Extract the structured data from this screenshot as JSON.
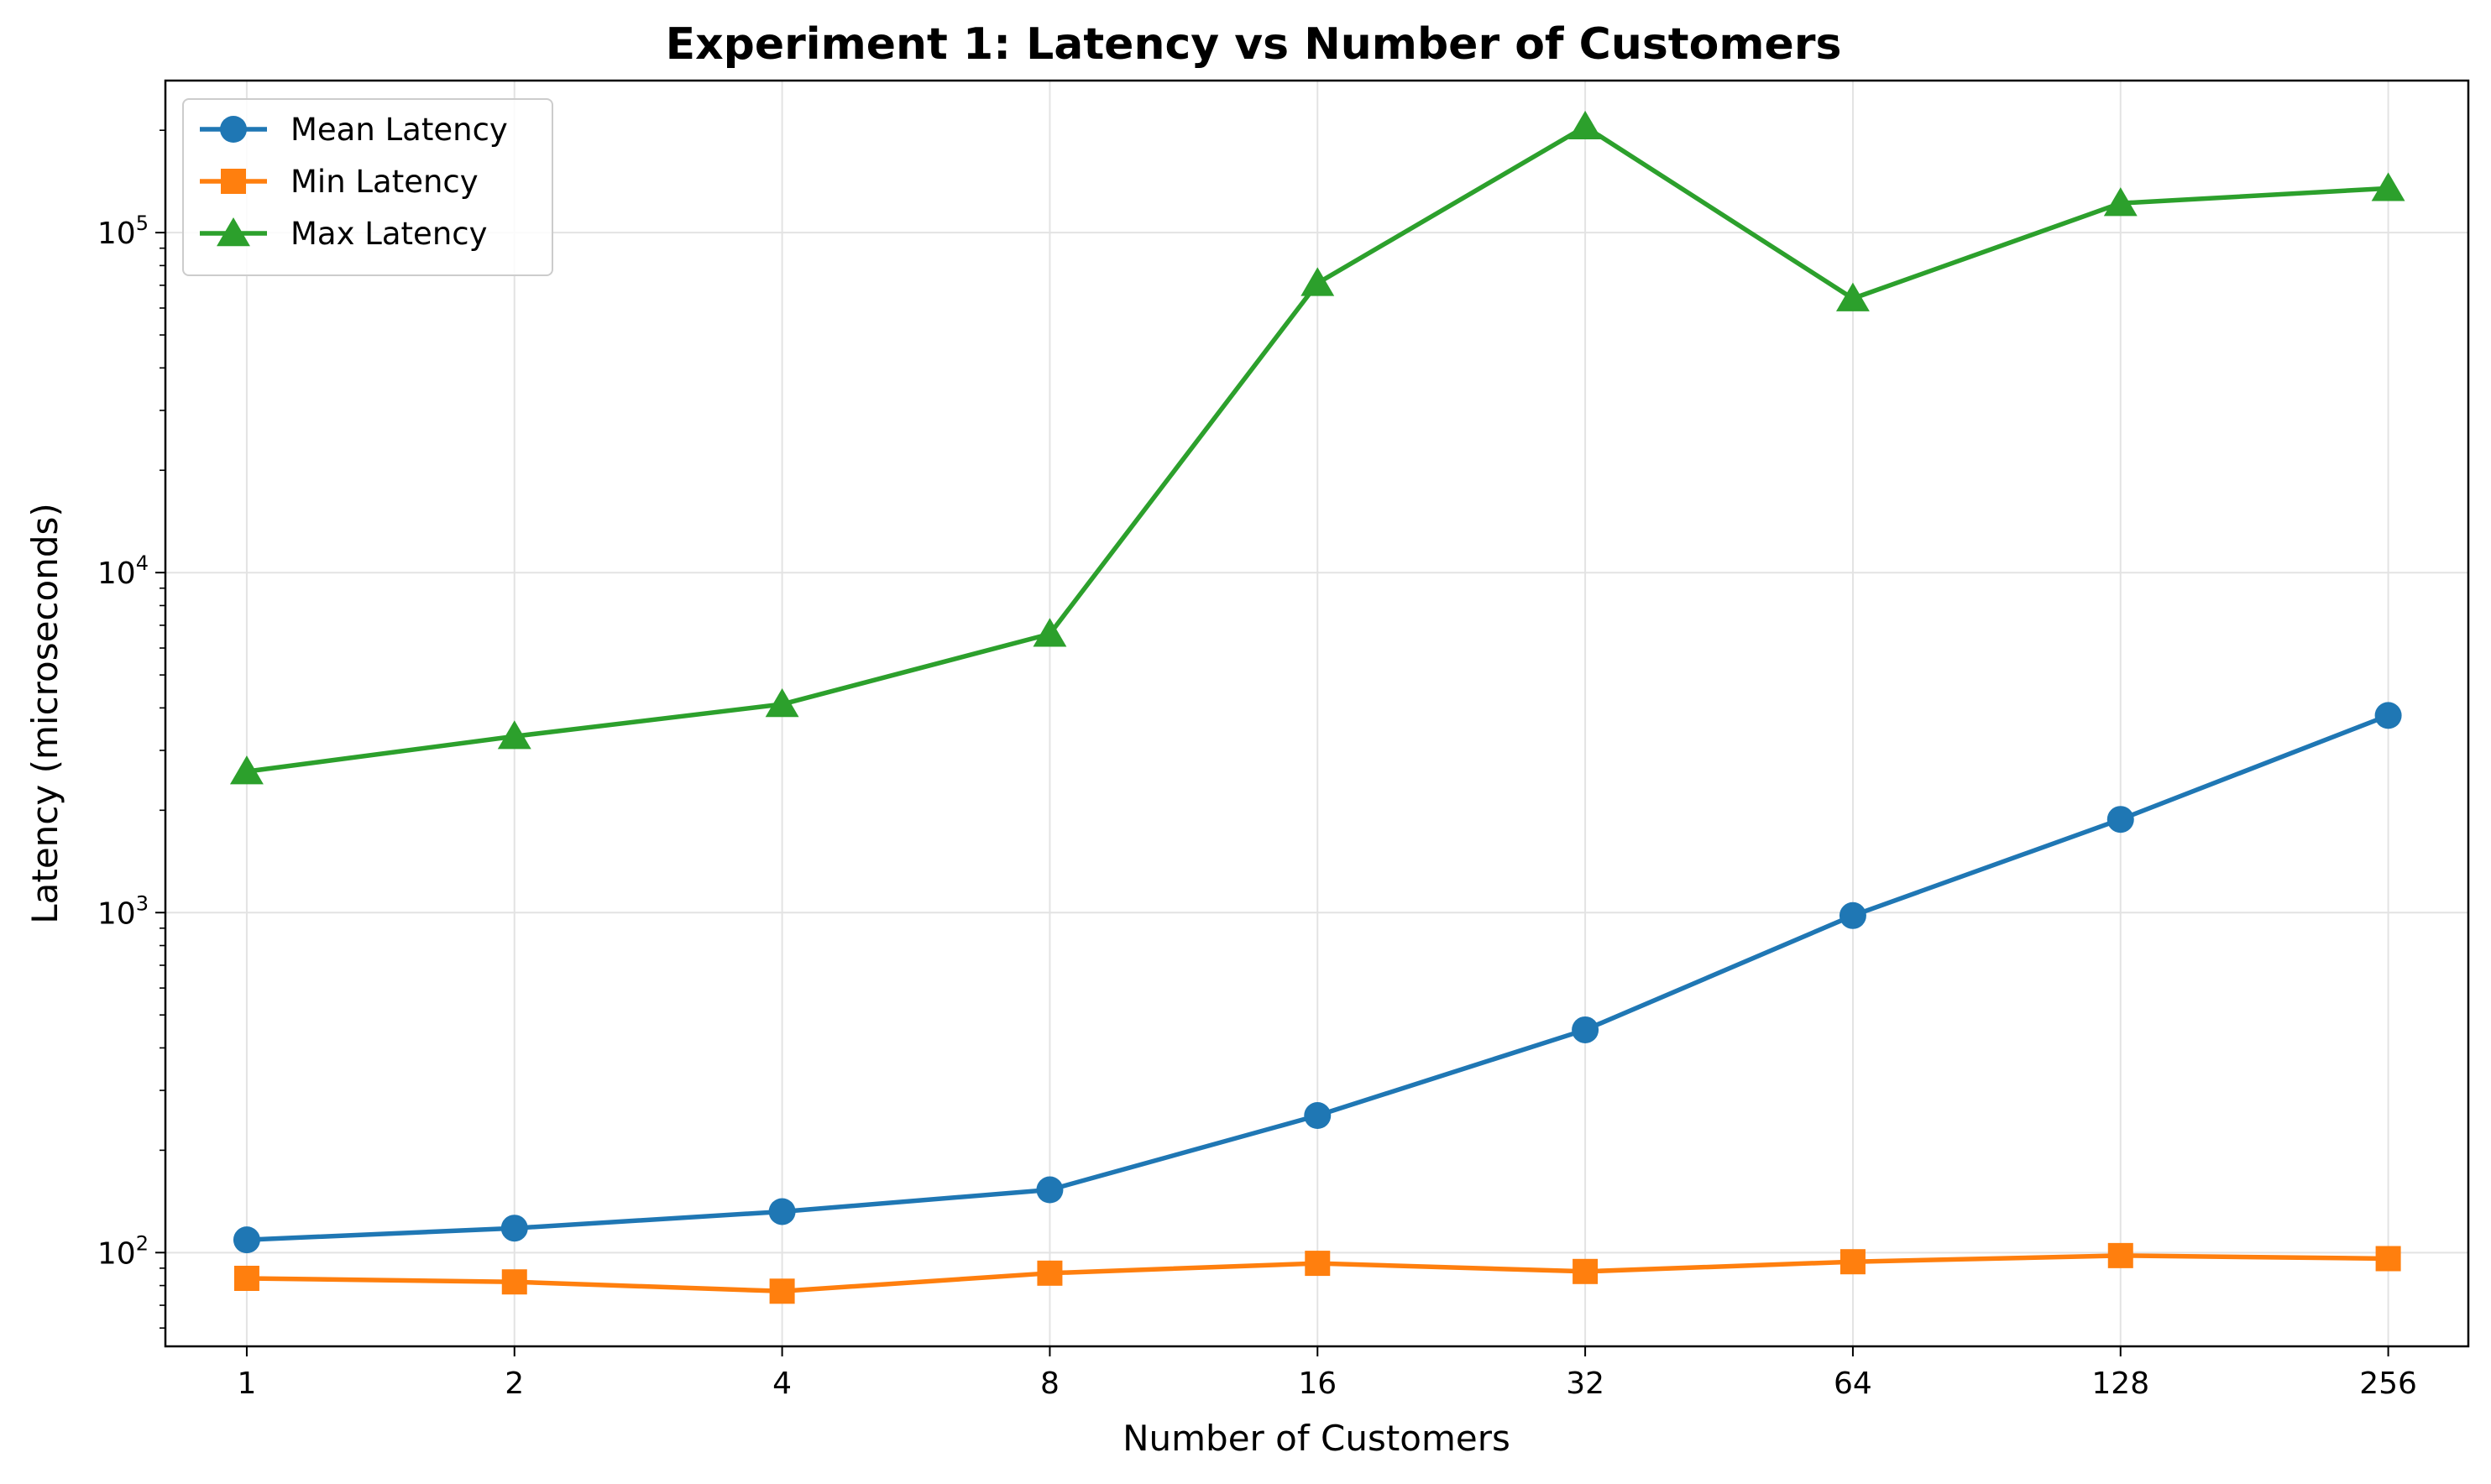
{
  "chart_data": {
    "type": "line",
    "title": "Experiment 1: Latency vs Number of Customers",
    "xlabel": "Number of Customers",
    "ylabel": "Latency (microseconds)",
    "x_scale": "log2",
    "y_scale": "log10",
    "x": [
      1,
      2,
      4,
      8,
      16,
      32,
      64,
      128,
      256
    ],
    "x_tick_labels": [
      "1",
      "2",
      "4",
      "8",
      "16",
      "32",
      "64",
      "128",
      "256"
    ],
    "y_tick_labels": [
      {
        "value": 100,
        "base": "10",
        "exp": "2"
      },
      {
        "value": 1000,
        "base": "10",
        "exp": "3"
      },
      {
        "value": 10000,
        "base": "10",
        "exp": "4"
      },
      {
        "value": 100000,
        "base": "10",
        "exp": "5"
      }
    ],
    "xlim": [
      0.81,
      315
    ],
    "ylim": [
      53,
      280000
    ],
    "grid": true,
    "legend_position": "upper-left",
    "series": [
      {
        "name": "Mean Latency",
        "color": "#1f77b4",
        "marker": "circle",
        "values": [
          109,
          118,
          132,
          153,
          253,
          452,
          980,
          1880,
          3800
        ]
      },
      {
        "name": "Min Latency",
        "color": "#ff7f0e",
        "marker": "square",
        "values": [
          84,
          82,
          77,
          87,
          93,
          88,
          94,
          98,
          96
        ]
      },
      {
        "name": "Max Latency",
        "color": "#2ca02c",
        "marker": "triangle",
        "values": [
          2600,
          3300,
          4100,
          6600,
          71000,
          205000,
          64000,
          122000,
          135000
        ]
      }
    ]
  }
}
